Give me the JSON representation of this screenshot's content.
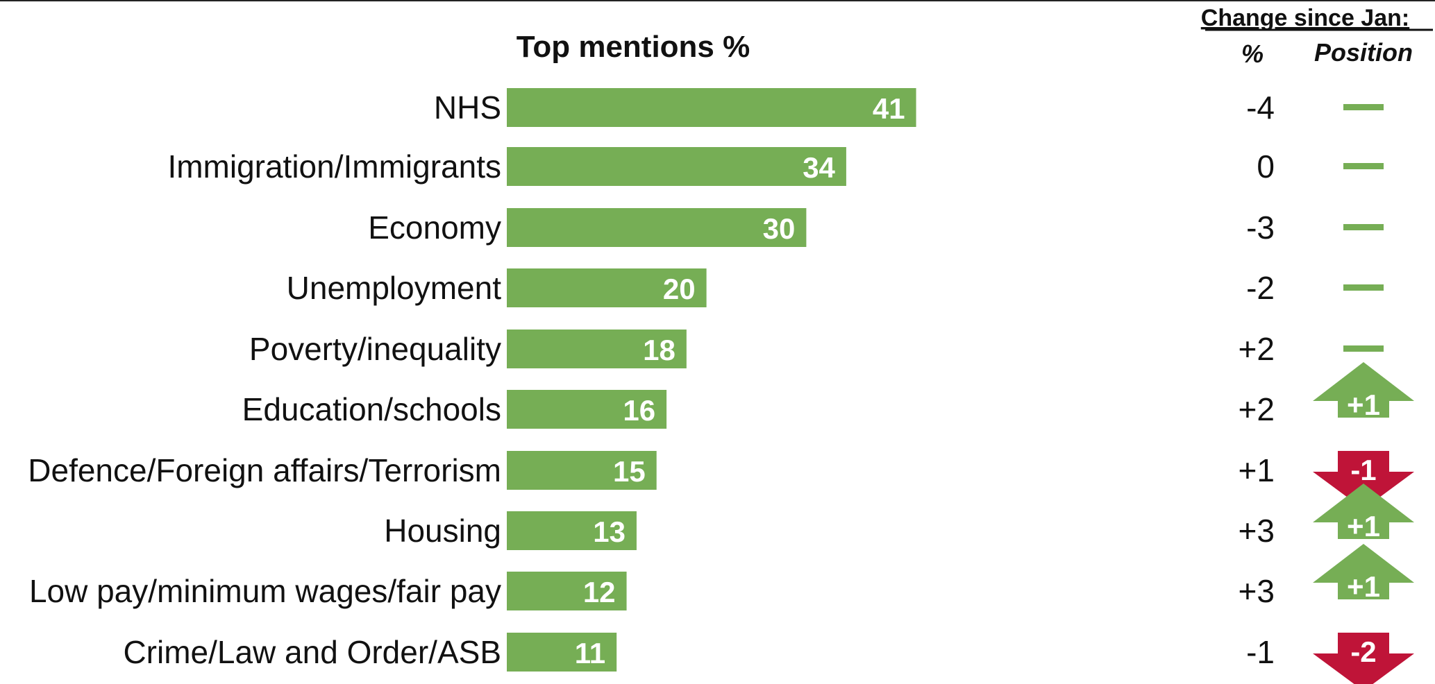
{
  "colors": {
    "bar": "#76ae55",
    "up": "#76ae55",
    "down": "#bf1438",
    "text": "#111111"
  },
  "chart_data": {
    "type": "bar",
    "orientation": "horizontal",
    "title": "Top mentions %",
    "categories": [
      "NHS",
      "Immigration/Immigrants",
      "Economy",
      "Unemployment",
      "Poverty/inequality",
      "Education/schools",
      "Defence/Foreign affairs/Terrorism",
      "Housing",
      "Low pay/minimum wages/fair pay",
      "Crime/Law and Order/ASB"
    ],
    "values": [
      41,
      34,
      30,
      20,
      18,
      16,
      15,
      13,
      12,
      11
    ],
    "data_labels": [
      "41",
      "34",
      "30",
      "20",
      "18",
      "16",
      "15",
      "13",
      "12",
      "11"
    ],
    "change_header": "Change since Jan:",
    "change_pct_label": "%",
    "change_pos_label": "Position",
    "change_pct": [
      "-4",
      "0",
      "-3",
      "-2",
      "+2",
      "+2",
      "+1",
      "+3",
      "+3",
      "-1"
    ],
    "position_change": [
      {
        "type": "none",
        "label": ""
      },
      {
        "type": "none",
        "label": ""
      },
      {
        "type": "none",
        "label": ""
      },
      {
        "type": "none",
        "label": ""
      },
      {
        "type": "none",
        "label": ""
      },
      {
        "type": "up",
        "label": "+1"
      },
      {
        "type": "down",
        "label": "-1"
      },
      {
        "type": "up",
        "label": "+1"
      },
      {
        "type": "up",
        "label": "+1"
      },
      {
        "type": "down",
        "label": "-2"
      }
    ]
  }
}
